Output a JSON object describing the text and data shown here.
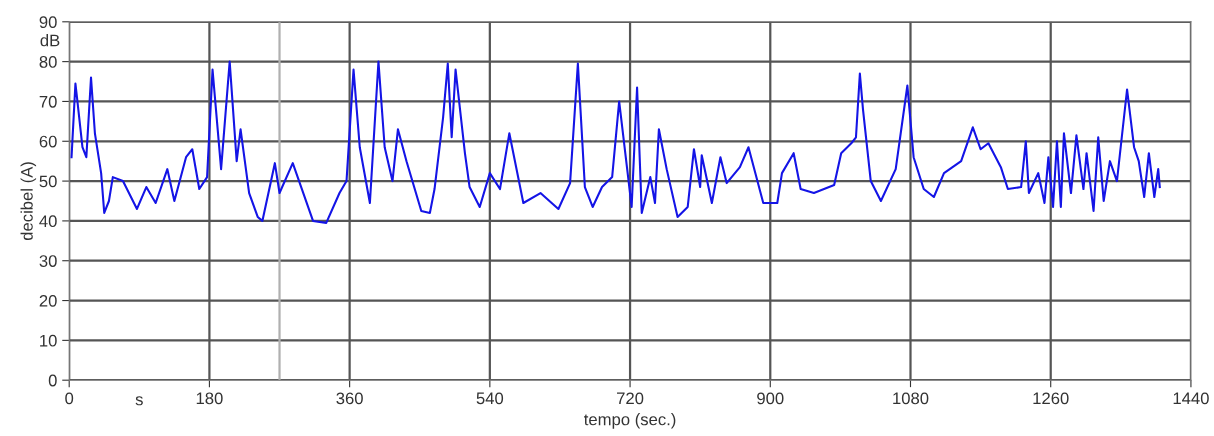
{
  "chart_data": {
    "type": "line",
    "xlabel": "tempo (sec.)",
    "ylabel": "decibel (A)",
    "annotations": [
      "dB",
      "s"
    ],
    "xlim": [
      0,
      1440
    ],
    "xticks": [
      0,
      180,
      360,
      540,
      720,
      900,
      1080,
      1260,
      1440
    ],
    "ylim": [
      0,
      90
    ],
    "yticks": [
      0,
      10,
      20,
      30,
      40,
      50,
      60,
      70,
      80,
      90
    ],
    "grid": true,
    "marker": "none",
    "line_style": "solid",
    "ref_lines": [
      {
        "axis": "x",
        "value": 270,
        "color": "#b0b0b0"
      }
    ],
    "series": [
      {
        "color": "#1414e6",
        "x": [
          3,
          8,
          10,
          17,
          22,
          28,
          33,
          41,
          45,
          51,
          56,
          69,
          87,
          99,
          111,
          126,
          135,
          150,
          158,
          167,
          177,
          184,
          195,
          206,
          215,
          220,
          231,
          242,
          248,
          264,
          270,
          287,
          313,
          330,
          347,
          356,
          365,
          373,
          386,
          397,
          405,
          415,
          422,
          433,
          452,
          463,
          469,
          480,
          486,
          491,
          496,
          508,
          514,
          527,
          540,
          553,
          565,
          583,
          605,
          628,
          643,
          653,
          662,
          672,
          684,
          697,
          706,
          716,
          722,
          729,
          735,
          746,
          752,
          757,
          767,
          781,
          794,
          802,
          810,
          812,
          825,
          836,
          844,
          861,
          872,
          891,
          909,
          915,
          930,
          939,
          956,
          982,
          991,
          1004,
          1010,
          1015,
          1019,
          1029,
          1042,
          1061,
          1076,
          1084,
          1097,
          1110,
          1123,
          1145,
          1160,
          1170,
          1180,
          1196,
          1205,
          1222,
          1228,
          1232,
          1244,
          1252,
          1257,
          1263,
          1268,
          1273,
          1277,
          1286,
          1293,
          1302,
          1306,
          1315,
          1321,
          1328,
          1336,
          1345,
          1358,
          1367,
          1373,
          1380,
          1386,
          1393,
          1398,
          1400
        ],
        "values": [
          56,
          74.5,
          71,
          58.5,
          56,
          76,
          62,
          52,
          42,
          45,
          51,
          50,
          43,
          48.5,
          44.5,
          53,
          45,
          56,
          58,
          48,
          51,
          78,
          53,
          80,
          55,
          63,
          47,
          41,
          40,
          54.5,
          47,
          54.5,
          40,
          39.5,
          47,
          50,
          78,
          58.5,
          44.5,
          80,
          58.5,
          50,
          63,
          55,
          42.5,
          42,
          48,
          66,
          79.5,
          61,
          78,
          57,
          48.5,
          43.5,
          52,
          48,
          62,
          44.5,
          47,
          43,
          49.5,
          79.5,
          48.5,
          43.5,
          48.5,
          51,
          70,
          53.5,
          43.5,
          73.5,
          42,
          51,
          44.5,
          63,
          53,
          41,
          43.5,
          58,
          48.5,
          56.5,
          44.5,
          56,
          49.5,
          53.5,
          58.5,
          44.5,
          44.5,
          52,
          57,
          48,
          47,
          49,
          57,
          59.5,
          61,
          77,
          68,
          50,
          45,
          53,
          74,
          56,
          48,
          46,
          52,
          55,
          63.5,
          58,
          59.5,
          53.5,
          48,
          48.5,
          60,
          47,
          52,
          44.5,
          56,
          43.5,
          60,
          43.5,
          62,
          47,
          61.5,
          48,
          57,
          42.5,
          61,
          45,
          55,
          50,
          73,
          58.5,
          55,
          46,
          57,
          46,
          53,
          48.5
        ]
      }
    ]
  }
}
